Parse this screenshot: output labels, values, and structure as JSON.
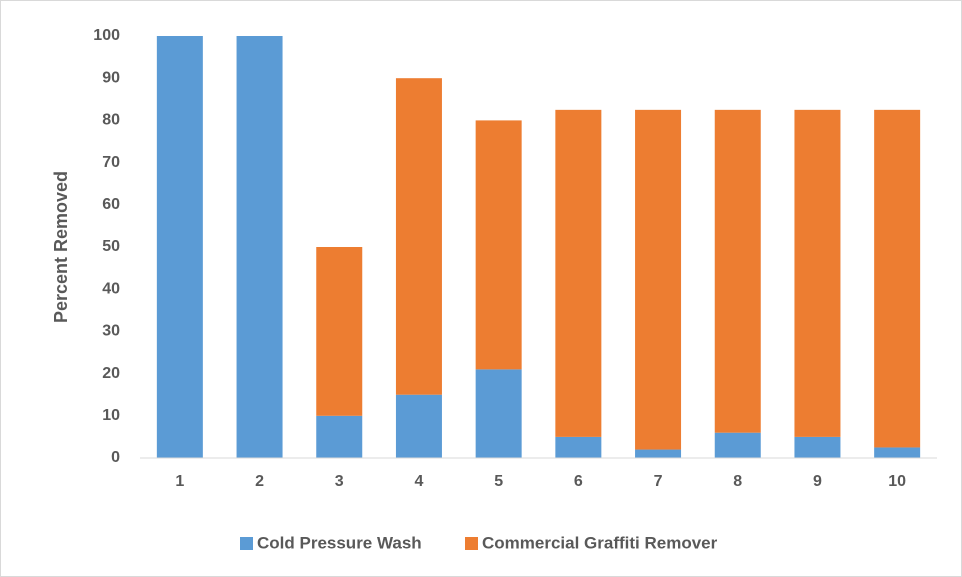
{
  "chart_data": {
    "type": "stacked_bar",
    "y_label": "Percent Removed",
    "categories": [
      "1",
      "2",
      "3",
      "4",
      "5",
      "6",
      "7",
      "8",
      "9",
      "10"
    ],
    "series": [
      {
        "name": "Cold Pressure Wash",
        "color": "#5b9bd5",
        "values": [
          100,
          100,
          10,
          15,
          21,
          5,
          2,
          6,
          5,
          2.5
        ]
      },
      {
        "name": "Commercial Graffiti Remover",
        "color": "#ed7d31",
        "values": [
          0,
          0,
          40,
          75,
          59,
          77.5,
          80.5,
          76.5,
          77.5,
          80
        ]
      }
    ],
    "ylim": [
      0,
      100
    ],
    "yticks": [
      0,
      10,
      20,
      30,
      40,
      50,
      60,
      70,
      80,
      90,
      100
    ],
    "grid": false,
    "legend": "bottom"
  }
}
